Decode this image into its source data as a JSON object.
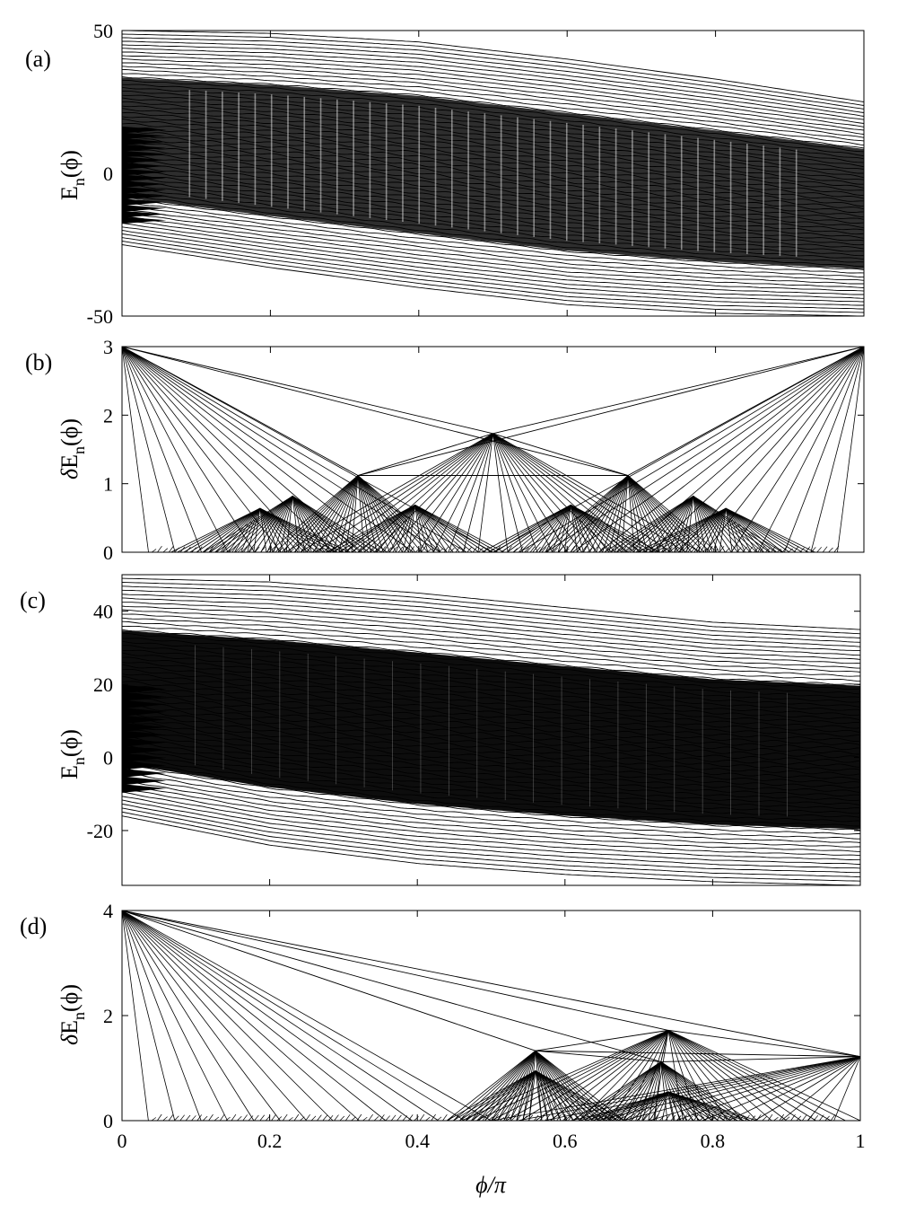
{
  "figure": {
    "xlabel": "ϕ/π"
  },
  "chart_data": [
    {
      "panel_label": "(a)",
      "type": "line",
      "ylabel_main": "E",
      "ylabel_sub": "n",
      "ylabel_arg": "(ϕ)",
      "xlim": [
        0,
        1
      ],
      "ylim": [
        -50,
        50
      ],
      "x_ticks": [
        0,
        0.2,
        0.4,
        0.6,
        0.8,
        1
      ],
      "x_tick_labels_shown": false,
      "y_ticks": [
        -50,
        0,
        50
      ],
      "y_tick_labels": [
        "-50",
        "0",
        "50"
      ],
      "grid": false,
      "series_description": "dense fan of energy levels (line spectrum)",
      "envelope_upper": [
        [
          0,
          50
        ],
        [
          0.2,
          49
        ],
        [
          0.4,
          46
        ],
        [
          0.6,
          40
        ],
        [
          0.8,
          33
        ],
        [
          1,
          25
        ]
      ],
      "envelope_lower": [
        [
          0,
          -25
        ],
        [
          0.2,
          -33
        ],
        [
          0.4,
          -40
        ],
        [
          0.6,
          -46
        ],
        [
          0.8,
          -49
        ],
        [
          1,
          -50
        ]
      ]
    },
    {
      "panel_label": "(b)",
      "type": "line",
      "ylabel_prefix": "δ",
      "ylabel_main": "E",
      "ylabel_sub": "n",
      "ylabel_arg": "(ϕ)",
      "xlim": [
        0,
        1
      ],
      "ylim": [
        0,
        3
      ],
      "x_ticks": [
        0,
        0.2,
        0.4,
        0.6,
        0.8,
        1
      ],
      "x_tick_labels_shown": false,
      "y_ticks": [
        0,
        1,
        2,
        3
      ],
      "y_tick_labels": [
        "0",
        "1",
        "2",
        "3"
      ],
      "grid": false,
      "peaks": [
        [
          0,
          3
        ],
        [
          0.5,
          1.732
        ],
        [
          1,
          3
        ],
        [
          0.318,
          1.12
        ],
        [
          0.682,
          1.12
        ],
        [
          0.23,
          0.82
        ],
        [
          0.77,
          0.82
        ],
        [
          0.395,
          0.69
        ],
        [
          0.605,
          0.69
        ],
        [
          0.186,
          0.64
        ],
        [
          0.814,
          0.64
        ]
      ]
    },
    {
      "panel_label": "(c)",
      "type": "line",
      "ylabel_main": "E",
      "ylabel_sub": "n",
      "ylabel_arg": "(ϕ)",
      "xlim": [
        0,
        1
      ],
      "ylim": [
        -35,
        50
      ],
      "x_ticks": [
        0,
        0.2,
        0.4,
        0.6,
        0.8,
        1
      ],
      "x_tick_labels_shown": false,
      "y_ticks": [
        -20,
        0,
        20,
        40
      ],
      "y_tick_labels": [
        "-20",
        "0",
        "20",
        "40"
      ],
      "grid": false,
      "series_description": "dense fan of energy levels (line spectrum)",
      "envelope_upper": [
        [
          0,
          49
        ],
        [
          0.2,
          48
        ],
        [
          0.4,
          45
        ],
        [
          0.6,
          41
        ],
        [
          0.8,
          37
        ],
        [
          1,
          35
        ]
      ],
      "envelope_lower": [
        [
          0,
          -16
        ],
        [
          0.2,
          -24
        ],
        [
          0.4,
          -29
        ],
        [
          0.6,
          -32
        ],
        [
          0.8,
          -34
        ],
        [
          1,
          -35
        ]
      ]
    },
    {
      "panel_label": "(d)",
      "type": "line",
      "ylabel_prefix": "δ",
      "ylabel_main": "E",
      "ylabel_sub": "n",
      "ylabel_arg": "(ϕ)",
      "xlim": [
        0,
        1
      ],
      "ylim": [
        0,
        4
      ],
      "x_ticks": [
        0,
        0.2,
        0.4,
        0.6,
        0.8,
        1
      ],
      "x_tick_labels": [
        "0",
        "0.2",
        "0.4",
        "0.6",
        "0.8",
        "1"
      ],
      "x_tick_labels_shown": true,
      "y_ticks": [
        0,
        2,
        4
      ],
      "y_tick_labels": [
        "0",
        "2",
        "4"
      ],
      "grid": false,
      "peaks": [
        [
          0,
          4
        ],
        [
          0.74,
          1.72
        ],
        [
          0.74,
          0.55
        ],
        [
          1,
          1.22
        ],
        [
          0.56,
          1.33
        ],
        [
          0.56,
          0.95
        ],
        [
          0.73,
          1.12
        ]
      ]
    }
  ]
}
